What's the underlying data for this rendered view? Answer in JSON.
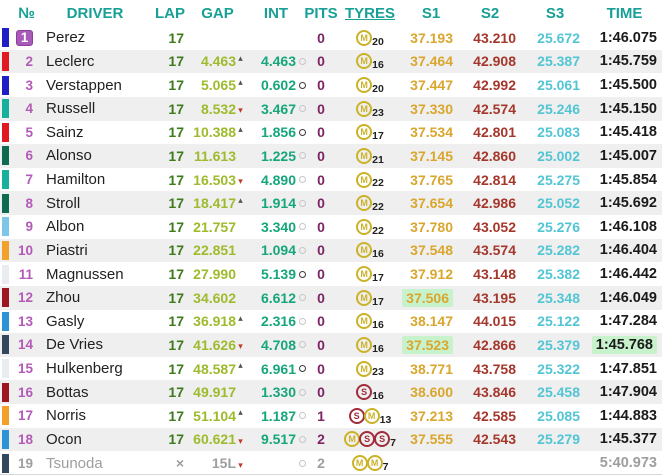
{
  "header": {
    "columns": [
      "№",
      "DRIVER",
      "LAP",
      "GAP",
      "INT",
      "PITS",
      "TYRES",
      "S1",
      "S2",
      "S3",
      "TIME"
    ]
  },
  "colors": {
    "header_text": "#18a096",
    "position": "#b35ab8",
    "leader_badge": "#a85ab8",
    "driver_text": "#212121",
    "lap": "#3e7a1e",
    "gap": "#9dbb2d",
    "interval": "#16a67c",
    "pits": "#7d2463",
    "s1": "#d9a62e",
    "s2": "#a5362c",
    "s3": "#52c5d4",
    "time": "#1a1a1a",
    "best_bg": "#c8f2cc",
    "tyre_medium": "#cbb228",
    "tyre_soft": "#a02c3c",
    "retired": "#9e9e9e",
    "arrow_up": "#555555",
    "arrow_down": "#c0392b",
    "row_alt_bg": "#efefef"
  },
  "rows": [
    {
      "pos": "1",
      "leader": true,
      "team_color": "#1f1fc4",
      "driver": "Perez",
      "lap": "17",
      "gap": "",
      "gap_arrow": "",
      "interval": "",
      "int_circle": "",
      "pits": "0",
      "tyres": [
        "M"
      ],
      "tyre_laps": "20",
      "s1": "37.193",
      "s2": "43.210",
      "s3": "25.672",
      "time": "1:46.075"
    },
    {
      "pos": "2",
      "team_color": "#e11a22",
      "driver": "Leclerc",
      "lap": "17",
      "gap": "4.463",
      "gap_arrow": "up",
      "interval": "4.463",
      "int_circle": "light",
      "pits": "0",
      "tyres": [
        "M"
      ],
      "tyre_laps": "16",
      "s1": "37.464",
      "s2": "42.908",
      "s3": "25.387",
      "time": "1:45.759"
    },
    {
      "pos": "3",
      "team_color": "#1f1fc4",
      "driver": "Verstappen",
      "lap": "17",
      "gap": "5.065",
      "gap_arrow": "up",
      "interval": "0.602",
      "int_circle": "dark",
      "pits": "0",
      "tyres": [
        "M"
      ],
      "tyre_laps": "20",
      "s1": "37.447",
      "s2": "42.992",
      "s3": "25.061",
      "time": "1:45.500"
    },
    {
      "pos": "4",
      "team_color": "#17b09c",
      "driver": "Russell",
      "lap": "17",
      "gap": "8.532",
      "gap_arrow": "down",
      "interval": "3.467",
      "int_circle": "light",
      "pits": "0",
      "tyres": [
        "M"
      ],
      "tyre_laps": "23",
      "s1": "37.330",
      "s2": "42.574",
      "s3": "25.246",
      "time": "1:45.150"
    },
    {
      "pos": "5",
      "team_color": "#e11a22",
      "driver": "Sainz",
      "lap": "17",
      "gap": "10.388",
      "gap_arrow": "up",
      "interval": "1.856",
      "int_circle": "dark",
      "pits": "0",
      "tyres": [
        "M"
      ],
      "tyre_laps": "17",
      "s1": "37.534",
      "s2": "42.801",
      "s3": "25.083",
      "time": "1:45.418"
    },
    {
      "pos": "6",
      "team_color": "#0d6b52",
      "driver": "Alonso",
      "lap": "17",
      "gap": "11.613",
      "gap_arrow": "",
      "interval": "1.225",
      "int_circle": "light",
      "pits": "0",
      "tyres": [
        "M"
      ],
      "tyre_laps": "21",
      "s1": "37.145",
      "s2": "42.860",
      "s3": "25.002",
      "time": "1:45.007"
    },
    {
      "pos": "7",
      "team_color": "#17b09c",
      "driver": "Hamilton",
      "lap": "17",
      "gap": "16.503",
      "gap_arrow": "down",
      "interval": "4.890",
      "int_circle": "light",
      "pits": "0",
      "tyres": [
        "M"
      ],
      "tyre_laps": "22",
      "s1": "37.765",
      "s2": "42.814",
      "s3": "25.275",
      "time": "1:45.854"
    },
    {
      "pos": "8",
      "team_color": "#0d6b52",
      "driver": "Stroll",
      "lap": "17",
      "gap": "18.417",
      "gap_arrow": "up",
      "interval": "1.914",
      "int_circle": "light",
      "pits": "0",
      "tyres": [
        "M"
      ],
      "tyre_laps": "22",
      "s1": "37.654",
      "s2": "42.986",
      "s3": "25.052",
      "time": "1:45.692"
    },
    {
      "pos": "9",
      "team_color": "#7ec5ea",
      "driver": "Albon",
      "lap": "17",
      "gap": "21.757",
      "gap_arrow": "",
      "interval": "3.340",
      "int_circle": "light",
      "pits": "0",
      "tyres": [
        "M"
      ],
      "tyre_laps": "22",
      "s1": "37.780",
      "s2": "43.052",
      "s3": "25.276",
      "time": "1:46.108"
    },
    {
      "pos": "10",
      "team_color": "#f2a22b",
      "driver": "Piastri",
      "lap": "17",
      "gap": "22.851",
      "gap_arrow": "",
      "interval": "1.094",
      "int_circle": "light",
      "pits": "0",
      "tyres": [
        "M"
      ],
      "tyre_laps": "16",
      "s1": "37.548",
      "s2": "43.574",
      "s3": "25.282",
      "time": "1:46.404"
    },
    {
      "pos": "11",
      "team_color": "#e9edf1",
      "driver": "Magnussen",
      "lap": "17",
      "gap": "27.990",
      "gap_arrow": "",
      "interval": "5.139",
      "int_circle": "dark",
      "pits": "0",
      "tyres": [
        "M"
      ],
      "tyre_laps": "17",
      "s1": "37.912",
      "s2": "43.148",
      "s3": "25.382",
      "time": "1:46.442"
    },
    {
      "pos": "12",
      "team_color": "#9c1521",
      "driver": "Zhou",
      "lap": "17",
      "gap": "34.602",
      "gap_arrow": "",
      "interval": "6.612",
      "int_circle": "light",
      "pits": "0",
      "tyres": [
        "M"
      ],
      "tyre_laps": "17",
      "s1": "37.506",
      "s1_best": true,
      "s2": "43.195",
      "s3": "25.348",
      "time": "1:46.049"
    },
    {
      "pos": "13",
      "team_color": "#2d93d6",
      "driver": "Gasly",
      "lap": "17",
      "gap": "36.918",
      "gap_arrow": "up",
      "interval": "2.316",
      "int_circle": "light",
      "pits": "0",
      "tyres": [
        "M"
      ],
      "tyre_laps": "16",
      "s1": "38.147",
      "s2": "44.015",
      "s3": "25.122",
      "time": "1:47.284"
    },
    {
      "pos": "14",
      "team_color": "#33465c",
      "driver": "De Vries",
      "lap": "17",
      "gap": "41.626",
      "gap_arrow": "down",
      "interval": "4.708",
      "int_circle": "light",
      "pits": "0",
      "tyres": [
        "M"
      ],
      "tyre_laps": "16",
      "s1": "37.523",
      "s1_best": true,
      "s2": "42.866",
      "s3": "25.379",
      "time": "1:45.768",
      "time_best": true
    },
    {
      "pos": "15",
      "team_color": "#e9edf1",
      "driver": "Hulkenberg",
      "lap": "17",
      "gap": "48.587",
      "gap_arrow": "up",
      "interval": "6.961",
      "int_circle": "dark",
      "pits": "0",
      "tyres": [
        "M"
      ],
      "tyre_laps": "23",
      "s1": "38.771",
      "s2": "43.758",
      "s3": "25.322",
      "time": "1:47.851"
    },
    {
      "pos": "16",
      "team_color": "#9c1521",
      "driver": "Bottas",
      "lap": "17",
      "gap": "49.917",
      "gap_arrow": "",
      "interval": "1.330",
      "int_circle": "light",
      "pits": "0",
      "tyres": [
        "S"
      ],
      "tyre_laps": "16",
      "s1": "38.600",
      "s2": "43.846",
      "s3": "25.458",
      "time": "1:47.904"
    },
    {
      "pos": "17",
      "team_color": "#f2a22b",
      "driver": "Norris",
      "lap": "17",
      "gap": "51.104",
      "gap_arrow": "up",
      "interval": "1.187",
      "int_circle": "light",
      "pits": "1",
      "tyres": [
        "S",
        "M"
      ],
      "tyre_laps": "13",
      "s1": "37.213",
      "s2": "42.585",
      "s3": "25.085",
      "time": "1:44.883"
    },
    {
      "pos": "18",
      "team_color": "#2d93d6",
      "driver": "Ocon",
      "lap": "17",
      "gap": "60.621",
      "gap_arrow": "down",
      "interval": "9.517",
      "int_circle": "light",
      "pits": "2",
      "tyres": [
        "M",
        "S",
        "S"
      ],
      "tyre_laps": "7",
      "s1": "37.555",
      "s2": "42.543",
      "s3": "25.279",
      "time": "1:45.377"
    },
    {
      "pos": "19",
      "team_color": "#33465c",
      "driver": "Tsunoda",
      "lap": "×",
      "gap": "15L",
      "gap_arrow": "down",
      "interval": "",
      "int_circle": "light",
      "pits": "2",
      "tyres": [
        "M",
        "M"
      ],
      "tyre_laps": "7",
      "s1": "",
      "s2": "",
      "s3": "",
      "time": "5:40.973",
      "retired": true
    }
  ]
}
